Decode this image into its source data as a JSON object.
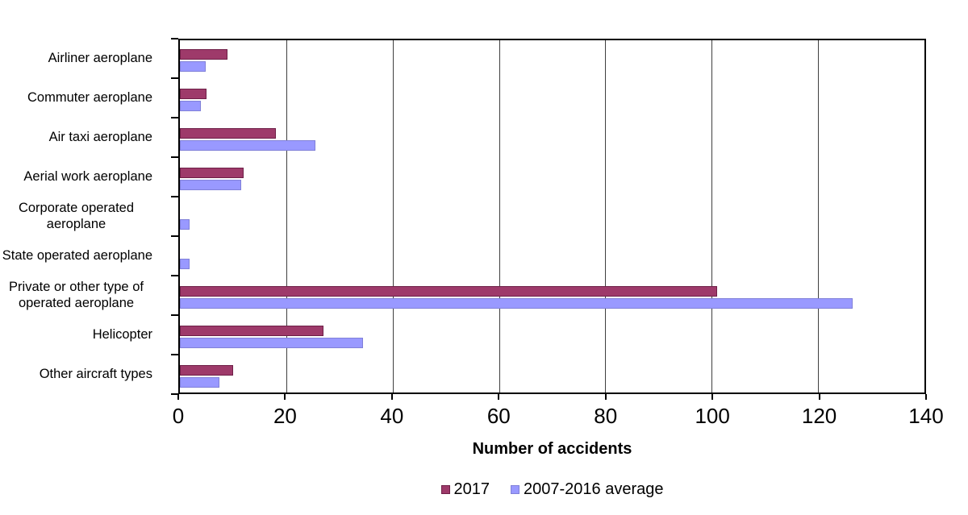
{
  "chart_data": {
    "type": "bar",
    "orientation": "horizontal",
    "title": "",
    "xlabel": "Number of accidents",
    "xlim": [
      0,
      140
    ],
    "xticks": [
      0,
      20,
      40,
      60,
      80,
      100,
      120,
      140
    ],
    "grid": "vertical",
    "legend_position": "bottom",
    "categories": [
      "Airliner aeroplane",
      "Commuter aeroplane",
      "Air taxi aeroplane",
      "Aerial work aeroplane",
      "Corporate operated aeroplane",
      "State operated aeroplane",
      "Private or other type of operated aeroplane",
      "Helicopter",
      "Other aircraft types"
    ],
    "series": [
      {
        "name": "2017",
        "color": "#9e3a6a",
        "border_color": "#6e1f47",
        "values": [
          9,
          5,
          18,
          12,
          0,
          0,
          101,
          27,
          10
        ]
      },
      {
        "name": "2007-2016 average",
        "color": "#9999ff",
        "border_color": "#8080d8",
        "values": [
          4.8,
          3.9,
          25.5,
          11.6,
          1.8,
          1.8,
          126.5,
          34.4,
          7.4
        ]
      }
    ]
  }
}
